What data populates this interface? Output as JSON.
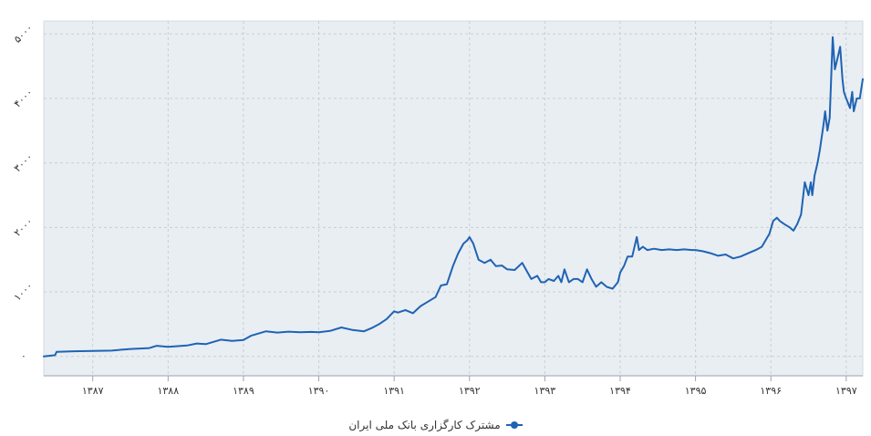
{
  "chart_data": {
    "type": "line",
    "title": "",
    "xlabel": "",
    "ylabel": "",
    "grid": true,
    "legend_position": "bottom-center",
    "x_tick_labels": [
      "۱۳۸۷",
      "۱۳۸۸",
      "۱۳۸۹",
      "۱۳۹۰",
      "۱۳۹۱",
      "۱۳۹۲",
      "۱۳۹۳",
      "۱۳۹۴",
      "۱۳۹۵",
      "۱۳۹۶",
      "۱۳۹۷"
    ],
    "x_ticks": [
      1387,
      1388,
      1389,
      1390,
      1391,
      1392,
      1393,
      1394,
      1395,
      1396,
      1397
    ],
    "xlim": [
      1386.35,
      1397.22
    ],
    "y_ticks": [
      0,
      1000,
      2000,
      3000,
      4000,
      5000
    ],
    "y_tick_labels": [
      "۰",
      "۱۰۰۰",
      "۲۰۰۰",
      "۳۰۰۰",
      "۴۰۰۰",
      "۵۰۰۰"
    ],
    "ylim": [
      -300,
      5200
    ],
    "colors": {
      "line": "#1f63b4",
      "plot_bg": "#e9eef3",
      "grid": "#c9ced3"
    },
    "series": [
      {
        "name": "مشترک کارگزاری بانک ملی ایران",
        "x": [
          1386.35,
          1386.5,
          1386.52,
          1386.75,
          1387.0,
          1387.25,
          1387.38,
          1387.5,
          1387.75,
          1387.85,
          1388.0,
          1388.25,
          1388.38,
          1388.5,
          1388.7,
          1388.85,
          1389.0,
          1389.1,
          1389.3,
          1389.45,
          1389.6,
          1389.75,
          1389.9,
          1390.0,
          1390.15,
          1390.3,
          1390.45,
          1390.6,
          1390.7,
          1390.8,
          1390.9,
          1391.0,
          1391.05,
          1391.15,
          1391.25,
          1391.35,
          1391.45,
          1391.55,
          1391.62,
          1391.7,
          1391.78,
          1391.85,
          1391.92,
          1391.97,
          1392.0,
          1392.05,
          1392.12,
          1392.2,
          1392.28,
          1392.35,
          1392.43,
          1392.5,
          1392.6,
          1392.7,
          1392.82,
          1392.9,
          1392.95,
          1393.0,
          1393.05,
          1393.12,
          1393.18,
          1393.22,
          1393.26,
          1393.32,
          1393.38,
          1393.44,
          1393.5,
          1393.56,
          1393.62,
          1393.68,
          1393.75,
          1393.82,
          1393.9,
          1393.97,
          1394.0,
          1394.05,
          1394.1,
          1394.16,
          1394.22,
          1394.25,
          1394.3,
          1394.36,
          1394.45,
          1394.55,
          1394.65,
          1394.75,
          1394.85,
          1394.95,
          1395.0,
          1395.1,
          1395.2,
          1395.3,
          1395.4,
          1395.5,
          1395.6,
          1395.7,
          1395.8,
          1395.88,
          1395.93,
          1395.98,
          1396.03,
          1396.08,
          1396.12,
          1396.18,
          1396.25,
          1396.3,
          1396.35,
          1396.4,
          1396.45,
          1396.5,
          1396.53,
          1396.55,
          1396.58,
          1396.62,
          1396.65,
          1396.7,
          1396.72,
          1396.75,
          1396.78,
          1396.8,
          1396.82,
          1396.85,
          1396.9,
          1396.92,
          1396.95,
          1396.97,
          1397.0,
          1397.05,
          1397.08,
          1397.1,
          1397.14,
          1397.18,
          1397.22
        ],
        "y": [
          0,
          20,
          70,
          80,
          85,
          90,
          105,
          115,
          130,
          165,
          150,
          170,
          200,
          190,
          260,
          240,
          255,
          320,
          390,
          370,
          385,
          375,
          380,
          375,
          395,
          450,
          410,
          390,
          440,
          500,
          580,
          700,
          680,
          720,
          670,
          780,
          850,
          920,
          1100,
          1120,
          1400,
          1600,
          1750,
          1800,
          1850,
          1750,
          1500,
          1450,
          1500,
          1400,
          1410,
          1350,
          1340,
          1450,
          1200,
          1250,
          1150,
          1150,
          1200,
          1170,
          1250,
          1150,
          1350,
          1150,
          1200,
          1200,
          1150,
          1350,
          1200,
          1080,
          1150,
          1080,
          1050,
          1150,
          1300,
          1400,
          1550,
          1550,
          1850,
          1650,
          1700,
          1650,
          1670,
          1650,
          1660,
          1650,
          1660,
          1650,
          1650,
          1630,
          1600,
          1560,
          1580,
          1520,
          1550,
          1600,
          1650,
          1700,
          1800,
          1900,
          2100,
          2150,
          2100,
          2050,
          2000,
          1950,
          2050,
          2200,
          2700,
          2500,
          2700,
          2500,
          2800,
          3000,
          3200,
          3600,
          3800,
          3500,
          3700,
          4300,
          4950,
          4450,
          4700,
          4800,
          4300,
          4100,
          4000,
          3850,
          4100,
          3800,
          4000,
          4000,
          4300
        ]
      }
    ]
  },
  "legend": {
    "label": "مشترک کارگزاری بانک ملی ایران",
    "marker": "circle-line-marker-icon"
  }
}
